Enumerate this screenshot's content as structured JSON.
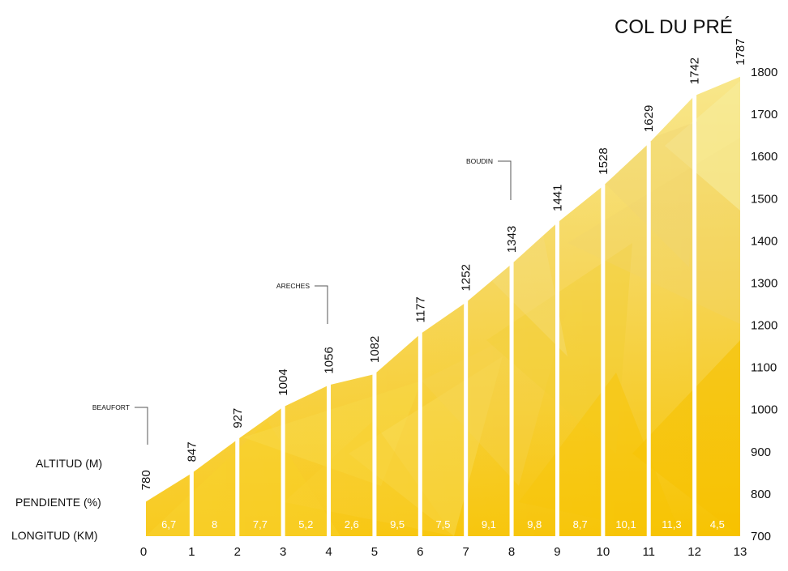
{
  "chart_data": {
    "type": "area",
    "title": "COL DU PRÉ",
    "x": [
      0,
      1,
      2,
      3,
      4,
      5,
      6,
      7,
      8,
      9,
      10,
      11,
      12,
      13
    ],
    "x_tick_labels": [
      "0",
      "1",
      "2",
      "3",
      "4",
      "5",
      "6",
      "7",
      "8",
      "9",
      "10",
      "11",
      "12",
      "13"
    ],
    "altitudes": [
      780,
      847,
      927,
      1004,
      1056,
      1082,
      1177,
      1252,
      1343,
      1441,
      1528,
      1629,
      1742,
      1787
    ],
    "altitude_labels": [
      "780",
      "847",
      "927",
      "1004",
      "1056",
      "1082",
      "1177",
      "1252",
      "1343",
      "1441",
      "1528",
      "1629",
      "1742",
      "1787"
    ],
    "gradients": [
      6.7,
      8,
      7.7,
      5.2,
      2.6,
      9.5,
      7.5,
      9.1,
      9.8,
      8.7,
      10.1,
      11.3,
      4.5
    ],
    "gradient_labels": [
      "6,7",
      "8",
      "7,7",
      "5,2",
      "2,6",
      "9,5",
      "7,5",
      "9,1",
      "9,8",
      "8,7",
      "10,1",
      "11,3",
      "4,5"
    ],
    "ylim": [
      700,
      1800
    ],
    "y_ticks": [
      700,
      800,
      900,
      1000,
      1100,
      1200,
      1300,
      1400,
      1500,
      1600,
      1700,
      1800
    ],
    "y_tick_labels": [
      "700",
      "800",
      "900",
      "1000",
      "1100",
      "1200",
      "1300",
      "1400",
      "1500",
      "1600",
      "1700",
      "1800"
    ],
    "row_labels": {
      "altitude": "ALTITUD (M)",
      "gradient": "PENDIENTE (%)",
      "distance": "LONGITUD (KM)"
    },
    "places": [
      {
        "name": "BEAUFORT",
        "km": 0
      },
      {
        "name": "ARECHES",
        "km": 4
      },
      {
        "name": "BOUDIN",
        "km": 8
      }
    ],
    "grid": false,
    "colors": {
      "fill_light": "#f7e27a",
      "fill_mid": "#f5cf3c",
      "fill_dark": "#f6c400",
      "separator": "#ffffff",
      "grade_text": "#ffffff"
    }
  }
}
